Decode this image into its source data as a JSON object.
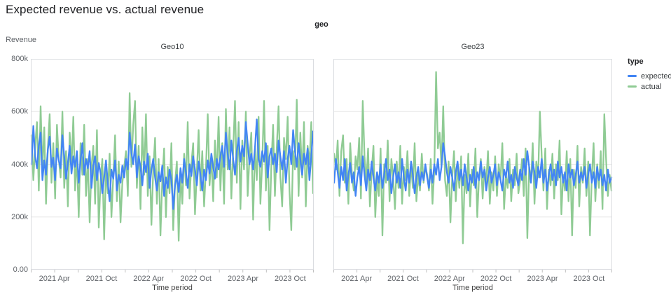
{
  "page": {
    "title": "Expected revenue vs. actual revenue"
  },
  "colors": {
    "expected": "#4285f4",
    "actual": "#8fcb94",
    "plot_border": "#dadce0",
    "gridline": "#e6e6e6",
    "tick_mark": "#c0c0c0",
    "axis_text": "#5f6368",
    "title_text": "#202124"
  },
  "chart_data": {
    "type": "line",
    "title": "Expected revenue vs. actual revenue",
    "facet_field": "geo",
    "x": {
      "label": "Time period",
      "axis_months_span": 36,
      "labeled_tick_months": [
        3,
        9,
        15,
        21,
        27,
        33
      ],
      "tick_labels": [
        "2021 Apr",
        "2021 Oct",
        "2022 Apr",
        "2022 Oct",
        "2023 Apr",
        "2023 Oct"
      ],
      "minor_tick_every_months": 3,
      "frequency": "weekly"
    },
    "y": {
      "label": "Revenue",
      "lim_k": [
        0,
        800
      ],
      "tick_labels_top_to_bottom": [
        "800k",
        "600k",
        "400k",
        "200k",
        "0.00"
      ],
      "gridlines_k": [
        600,
        400,
        200
      ]
    },
    "legend": {
      "title": "type",
      "entries": [
        "expected",
        "actual"
      ]
    },
    "value_units": "thousands",
    "facets": [
      {
        "label": "Geo10",
        "series": [
          {
            "name": "expected",
            "color": "#4285f4",
            "values_k": [
              400,
              545,
              430,
              385,
              470,
              520,
              340,
              415,
              360,
              455,
              505,
              390,
              425,
              340,
              460,
              415,
              385,
              510,
              430,
              345,
              405,
              470,
              365,
              430,
              390,
              450,
              330,
              415,
              480,
              360,
              420,
              385,
              450,
              310,
              395,
              430,
              340,
              405,
              365,
              290,
              350,
              415,
              330,
              260,
              380,
              345,
              415,
              300,
              360,
              330,
              395,
              350,
              420,
              380,
              520,
              445,
              400,
              475,
              350,
              430,
              390,
              320,
              410,
              370,
              440,
              310,
              380,
              420,
              350,
              300,
              370,
              335,
              395,
              280,
              350,
              310,
              380,
              340,
              230,
              320,
              360,
              295,
              385,
              330,
              420,
              370,
              310,
              400,
              355,
              430,
              380,
              320,
              410,
              360,
              300,
              380,
              340,
              415,
              365,
              440,
              390,
              345,
              420,
              380,
              430,
              470,
              390,
              520,
              440,
              380,
              490,
              420,
              360,
              450,
              500,
              410,
              470,
              430,
              560,
              480,
              400,
              440,
              380,
              460,
              570,
              420,
              390,
              450,
              410,
              480,
              350,
              430,
              460,
              400,
              440,
              370,
              490,
              430,
              380,
              450,
              330,
              420,
              470,
              400,
              530,
              450,
              390,
              480,
              420,
              360,
              440,
              400,
              460,
              340,
              430,
              525
            ]
          },
          {
            "name": "actual",
            "color": "#8fcb94",
            "values_k": [
              510,
              340,
              470,
              560,
              300,
              620,
              380,
              540,
              250,
              460,
              590,
              330,
              480,
              270,
              550,
              420,
              350,
              600,
              310,
              450,
              240,
              520,
              390,
              580,
              300,
              430,
              200,
              480,
              360,
              550,
              280,
              420,
              180,
              390,
              470,
              250,
              530,
              160,
              340,
              420,
              115,
              380,
              290,
              440,
              200,
              350,
              510,
              260,
              410,
              180,
              330,
              390,
              450,
              280,
              670,
              390,
              550,
              640,
              310,
              470,
              230,
              540,
              360,
              590,
              280,
              430,
              170,
              380,
              500,
              250,
              420,
              130,
              340,
              460,
              200,
              390,
              290,
              480,
              150,
              330,
              410,
              110,
              360,
              250,
              440,
              320,
              560,
              270,
              400,
              480,
              210,
              370,
              530,
              300,
              450,
              240,
              380,
              590,
              320,
              430,
              260,
              490,
              350,
              580,
              300,
              480,
              250,
              610,
              380,
              540,
              270,
              450,
              640,
              330,
              560,
              230,
              490,
              380,
              600,
              280,
              430,
              520,
              190,
              460,
              340,
              580,
              250,
              410,
              640,
              300,
              470,
              150,
              390,
              550,
              280,
              460,
              620,
              350,
              240,
              500,
              420,
              580,
              300,
              150,
              450,
              380,
              645,
              280,
              520,
              350,
              560,
              240,
              470,
              400,
              560,
              290
            ]
          }
        ]
      },
      {
        "label": "Geo23",
        "series": [
          {
            "name": "expected",
            "color": "#4285f4",
            "values_k": [
              330,
              420,
              370,
              310,
              390,
              340,
              420,
              300,
              360,
              405,
              330,
              370,
              280,
              350,
              390,
              320,
              430,
              360,
              300,
              380,
              340,
              410,
              350,
              300,
              370,
              330,
              400,
              310,
              360,
              420,
              340,
              380,
              290,
              350,
              400,
              330,
              370,
              310,
              420,
              350,
              300,
              380,
              330,
              410,
              360,
              290,
              350,
              390,
              320,
              370,
              340,
              400,
              350,
              310,
              380,
              330,
              400,
              360,
              420,
              340,
              390,
              480,
              430,
              370,
              330,
              390,
              350,
              300,
              370,
              410,
              340,
              380,
              320,
              400,
              350,
              300,
              360,
              330,
              390,
              310,
              370,
              340,
              410,
              350,
              380,
              300,
              350,
              390,
              330,
              360,
              400,
              320,
              370,
              340,
              300,
              380,
              350,
              410,
              330,
              360,
              310,
              390,
              350,
              320,
              380,
              340,
              420,
              360,
              450,
              390,
              330,
              410,
              370,
              310,
              390,
              350,
              420,
              330,
              380,
              300,
              360,
              400,
              340,
              380,
              320,
              410,
              350,
              390,
              330,
              370,
              300,
              400,
              350,
              380,
              320,
              360,
              410,
              330,
              370,
              340,
              390,
              310,
              360,
              400,
              330,
              370,
              310,
              390,
              340,
              380,
              320,
              360,
              300,
              380,
              330,
              350
            ]
          },
          {
            "name": "actual",
            "color": "#8fcb94",
            "values_k": [
              440,
              380,
              490,
              280,
              450,
              510,
              330,
              420,
              250,
              480,
              360,
              300,
              430,
              380,
              500,
              270,
              640,
              430,
              330,
              460,
              240,
              380,
              470,
              200,
              350,
              280,
              460,
              130,
              400,
              330,
              490,
              260,
              420,
              350,
              230,
              410,
              310,
              470,
              250,
              390,
              340,
              450,
              280,
              400,
              310,
              480,
              260,
              360,
              300,
              440,
              330,
              390,
              360,
              300,
              420,
              250,
              380,
              750,
              460,
              520,
              390,
              620,
              340,
              280,
              410,
              180,
              350,
              450,
              260,
              390,
              310,
              430,
              100,
              360,
              290,
              440,
              240,
              380,
              320,
              460,
              200,
              350,
              420,
              270,
              390,
              330,
              450,
              250,
              370,
              300,
              430,
              280,
              400,
              340,
              480,
              230,
              360,
              310,
              420,
              260,
              380,
              320,
              440,
              290,
              340,
              420,
              280,
              460,
              120,
              390,
              330,
              480,
              250,
              410,
              350,
              600,
              430,
              300,
              460,
              230,
              380,
              320,
              440,
              270,
              400,
              340,
              490,
              210,
              360,
              300,
              450,
              260,
              420,
              130,
              380,
              310,
              470,
              240,
              390,
              330,
              460,
              280,
              410,
              130,
              350,
              480,
              260,
              400,
              310,
              450,
              230,
              590,
              420,
              280,
              360,
              300
            ]
          }
        ]
      }
    ]
  }
}
